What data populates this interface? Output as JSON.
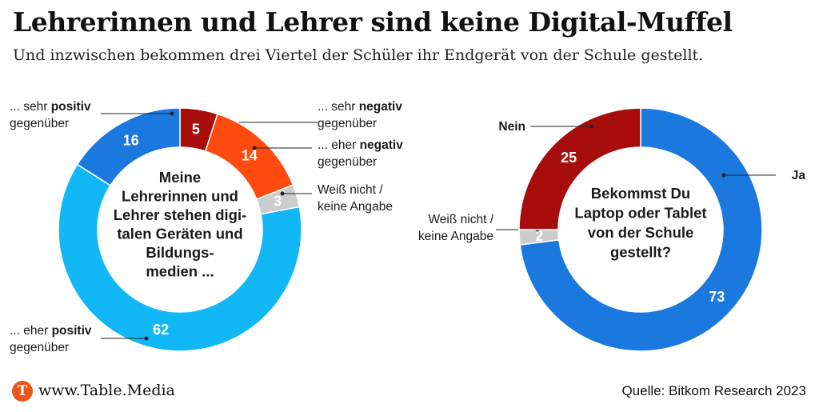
{
  "header": {
    "title": "Lehrerinnen und Lehrer sind keine Digital-Muffel",
    "subtitle": "Und inzwischen bekommen drei Viertel der Schüler ihr Endgerät von der Schule gestellt."
  },
  "chart_data": [
    {
      "type": "pie",
      "variant": "donut",
      "center_text": [
        "Meine",
        "Lehrerinnen und",
        "Lehrer stehen digi-",
        "talen Geräten und",
        "Bildungs-",
        "medien ..."
      ],
      "slices": [
        {
          "value": 5,
          "label": "5",
          "legend": [
            [
              {
                "t": "... sehr "
              },
              {
                "t": "negativ",
                "b": true
              }
            ],
            [
              {
                "t": "gegenüber"
              }
            ]
          ],
          "color": "#a80d0d"
        },
        {
          "value": 14,
          "label": "14",
          "legend": [
            [
              {
                "t": "... eher "
              },
              {
                "t": "negativ",
                "b": true
              }
            ],
            [
              {
                "t": "gegenüber"
              }
            ]
          ],
          "color": "#ff4a10"
        },
        {
          "value": 3,
          "label": "3",
          "legend": [
            [
              {
                "t": "Weiß nicht /"
              }
            ],
            [
              {
                "t": "keine Angabe"
              }
            ]
          ],
          "color": "#cccccc"
        },
        {
          "value": 62,
          "label": "62",
          "legend": [
            [
              {
                "t": "... eher "
              },
              {
                "t": "positiv",
                "b": true
              }
            ],
            [
              {
                "t": "gegenüber"
              }
            ]
          ],
          "color": "#12b8f6"
        },
        {
          "value": 16,
          "label": "16",
          "legend": [
            [
              {
                "t": "... sehr "
              },
              {
                "t": "positiv",
                "b": true
              }
            ],
            [
              {
                "t": "gegenüber"
              }
            ]
          ],
          "color": "#1a78df"
        }
      ]
    },
    {
      "type": "pie",
      "variant": "donut",
      "center_text": [
        "Bekommst Du",
        "Laptop oder Tablet",
        "von der Schule",
        "gestellt?"
      ],
      "slices": [
        {
          "value": 73,
          "label": "73",
          "legend": [
            [
              {
                "t": "Ja",
                "b": true
              }
            ]
          ],
          "color": "#1a78df"
        },
        {
          "value": 2,
          "label": "2",
          "legend": [
            [
              {
                "t": "Weiß nicht /"
              }
            ],
            [
              {
                "t": "keine Angabe"
              }
            ]
          ],
          "color": "#cccccc"
        },
        {
          "value": 25,
          "label": "25",
          "legend": [
            [
              {
                "t": "Nein",
                "b": true
              }
            ]
          ],
          "color": "#a80d0d"
        }
      ]
    }
  ],
  "footer": {
    "logo_letter": "T",
    "url": "www.Table.Media",
    "source": "Quelle: Bitkom Research 2023"
  }
}
